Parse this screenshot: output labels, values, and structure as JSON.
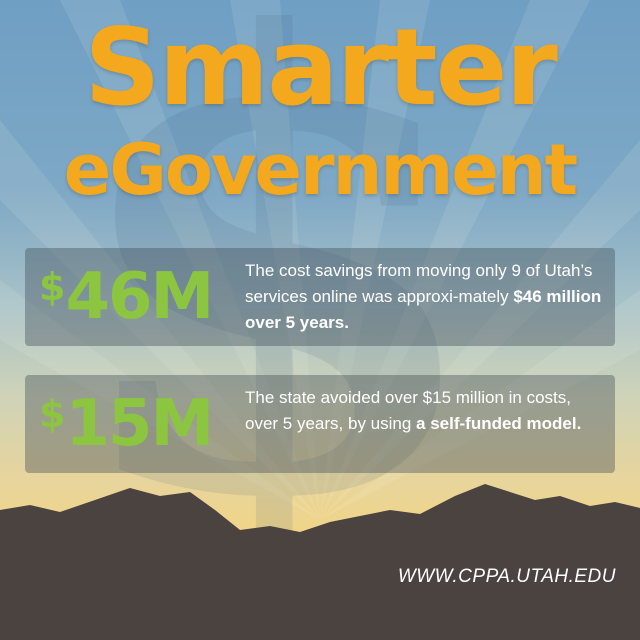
{
  "title": {
    "line1": "Smarter",
    "line2": "eGovernment"
  },
  "stats": [
    {
      "dollar_sign": "$",
      "amount": "46M",
      "text_plain": "The cost savings from moving only 9 of Utah’s services online was approxi-mately ",
      "text_bold": "$46 million over 5 years."
    },
    {
      "dollar_sign": "$",
      "amount": "15M",
      "text_plain": "The state avoided over $15 million in costs, over 5 years, by using ",
      "text_bold": "a self-funded model."
    }
  ],
  "footer": {
    "url": "WWW.CPPA.UTAH.EDU"
  },
  "colors": {
    "title": "#f4a81d",
    "stat_value": "#8cc540",
    "mountains": "#4a4340",
    "sky_top": "#6f9fc3",
    "horizon_glow": "#efc86c"
  },
  "background": {
    "motif": "dollar-sign",
    "rays": true
  }
}
